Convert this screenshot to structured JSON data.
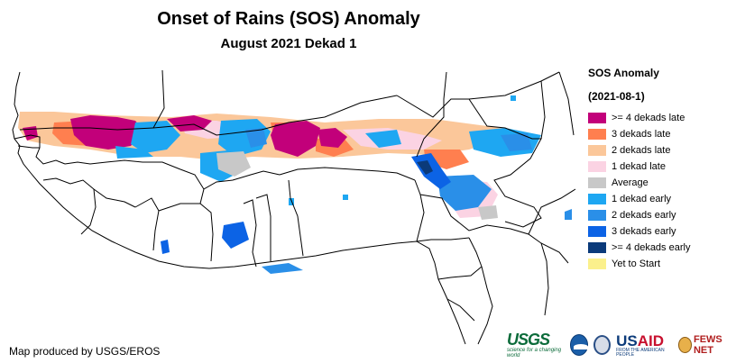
{
  "map": {
    "title": "Onset of Rains (SOS) Anomaly",
    "subtitle": "August 2021 Dekad 1",
    "region": "West Africa"
  },
  "legend": {
    "title": "SOS Anomaly",
    "date": "(2021-08-1)",
    "items": [
      {
        "label": ">= 4 dekads late",
        "color": "#c2007a"
      },
      {
        "label": "3 dekads late",
        "color": "#ff7f4f"
      },
      {
        "label": "2 dekads late",
        "color": "#fbc79a"
      },
      {
        "label": "1 dekad late",
        "color": "#fbd3e3"
      },
      {
        "label": "Average",
        "color": "#c8c8c8"
      },
      {
        "label": "1 dekad early",
        "color": "#1ea7f2"
      },
      {
        "label": "2 dekads early",
        "color": "#2a8fe8"
      },
      {
        "label": "3 dekads early",
        "color": "#0c63e5"
      },
      {
        "label": ">= 4 dekads early",
        "color": "#0b3a7a"
      },
      {
        "label": "Yet to Start",
        "color": "#fbf08c"
      }
    ]
  },
  "credit": "Map produced by USGS/EROS",
  "logos": {
    "usgs": "USGS",
    "usgs_tagline": "science for a changing world",
    "usaid_prefix": "US",
    "usaid_suffix": "AID",
    "usaid_tagline": "FROM THE AMERICAN PEOPLE",
    "fews": "FEWS NET"
  }
}
